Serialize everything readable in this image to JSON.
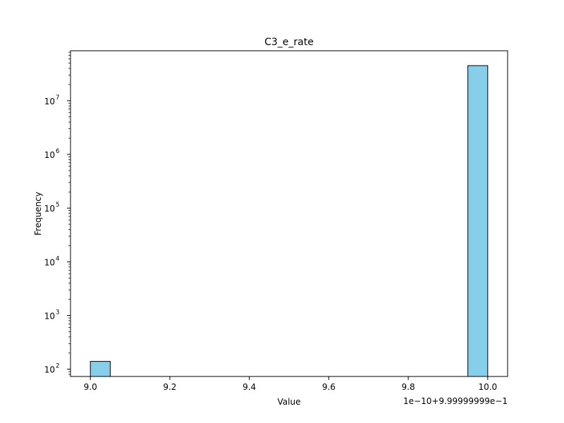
{
  "chart_data": {
    "type": "bar",
    "title": "C3_e_rate",
    "xlabel": "Value",
    "ylabel": "Frequency",
    "x_offset_label": "1e−10+9.99999999e−1",
    "xscale": "linear",
    "yscale": "log",
    "xlim": [
      8.95,
      10.05
    ],
    "ylim_log10": [
      1.865,
      7.93
    ],
    "x_ticks": [
      9.0,
      9.2,
      9.4,
      9.6,
      9.8,
      10.0
    ],
    "x_tick_labels": [
      "9.0",
      "9.2",
      "9.4",
      "9.6",
      "9.8",
      "10.0"
    ],
    "y_major_exponents": [
      2,
      3,
      4,
      5,
      6,
      7
    ],
    "y_tick_base": "10",
    "bar_color": "#87ceeb",
    "edge_color": "#000000",
    "bin_width": 0.05,
    "bins": [
      {
        "x0": 9.0,
        "x1": 9.05,
        "count": 140
      },
      {
        "x0": 9.95,
        "x1": 10.0,
        "count": 45000000
      }
    ]
  }
}
